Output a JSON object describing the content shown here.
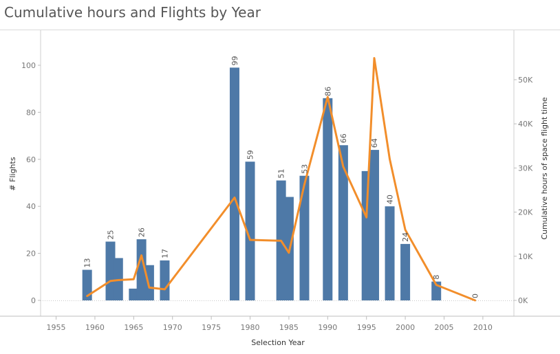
{
  "chart_data": {
    "type": "bar",
    "title": "Cumulative hours and Flights by Year",
    "xlabel": "Selection Year",
    "ylabel": "# Flights",
    "y2label": "Cumulative hours of space flight time",
    "xlim": [
      1953,
      2014
    ],
    "ylim": [
      0,
      107
    ],
    "y2lim": [
      0,
      57000
    ],
    "x_ticks": [
      1955,
      1960,
      1965,
      1970,
      1975,
      1980,
      1985,
      1990,
      1995,
      2000,
      2005,
      2010
    ],
    "y_ticks": [
      0,
      20,
      40,
      60,
      80,
      100
    ],
    "y2_ticks": [
      {
        "value": 0,
        "label": "0K"
      },
      {
        "value": 10000,
        "label": "10K"
      },
      {
        "value": 20000,
        "label": "20K"
      },
      {
        "value": 30000,
        "label": "30K"
      },
      {
        "value": 40000,
        "label": "40K"
      },
      {
        "value": 50000,
        "label": "50K"
      }
    ],
    "grid": false,
    "colors": {
      "bar": "#4e79a7",
      "line": "#f28e2b"
    },
    "series": [
      {
        "type": "bar",
        "axis": "left",
        "points": [
          {
            "x": 1959,
            "y": 13,
            "label": "13"
          },
          {
            "x": 1962,
            "y": 25,
            "label": "25"
          },
          {
            "x": 1963,
            "y": 18,
            "label": ""
          },
          {
            "x": 1965,
            "y": 5,
            "label": ""
          },
          {
            "x": 1966,
            "y": 26,
            "label": "26"
          },
          {
            "x": 1967,
            "y": 15,
            "label": ""
          },
          {
            "x": 1969,
            "y": 17,
            "label": "17"
          },
          {
            "x": 1978,
            "y": 99,
            "label": "99"
          },
          {
            "x": 1980,
            "y": 59,
            "label": "59"
          },
          {
            "x": 1984,
            "y": 51,
            "label": "51"
          },
          {
            "x": 1985,
            "y": 44,
            "label": ""
          },
          {
            "x": 1987,
            "y": 53,
            "label": "53"
          },
          {
            "x": 1990,
            "y": 86,
            "label": "86"
          },
          {
            "x": 1992,
            "y": 66,
            "label": "66"
          },
          {
            "x": 1995,
            "y": 55,
            "label": ""
          },
          {
            "x": 1996,
            "y": 64,
            "label": "64"
          },
          {
            "x": 1998,
            "y": 40,
            "label": "40"
          },
          {
            "x": 2000,
            "y": 24,
            "label": "24"
          },
          {
            "x": 2004,
            "y": 8,
            "label": "8"
          },
          {
            "x": 2009,
            "y": 0,
            "label": "0"
          }
        ]
      },
      {
        "type": "line",
        "axis": "right",
        "points": [
          {
            "x": 1959,
            "y": 1000
          },
          {
            "x": 1962,
            "y": 4400
          },
          {
            "x": 1963,
            "y": 4600
          },
          {
            "x": 1965,
            "y": 4800
          },
          {
            "x": 1966,
            "y": 10200
          },
          {
            "x": 1967,
            "y": 2900
          },
          {
            "x": 1969,
            "y": 2500
          },
          {
            "x": 1978,
            "y": 23300
          },
          {
            "x": 1980,
            "y": 13700
          },
          {
            "x": 1984,
            "y": 13500
          },
          {
            "x": 1985,
            "y": 10800
          },
          {
            "x": 1987,
            "y": 26300
          },
          {
            "x": 1990,
            "y": 46100
          },
          {
            "x": 1992,
            "y": 30300
          },
          {
            "x": 1995,
            "y": 18800
          },
          {
            "x": 1996,
            "y": 54900
          },
          {
            "x": 1998,
            "y": 32000
          },
          {
            "x": 2000,
            "y": 16000
          },
          {
            "x": 2004,
            "y": 3500
          },
          {
            "x": 2009,
            "y": 0
          }
        ]
      }
    ]
  }
}
